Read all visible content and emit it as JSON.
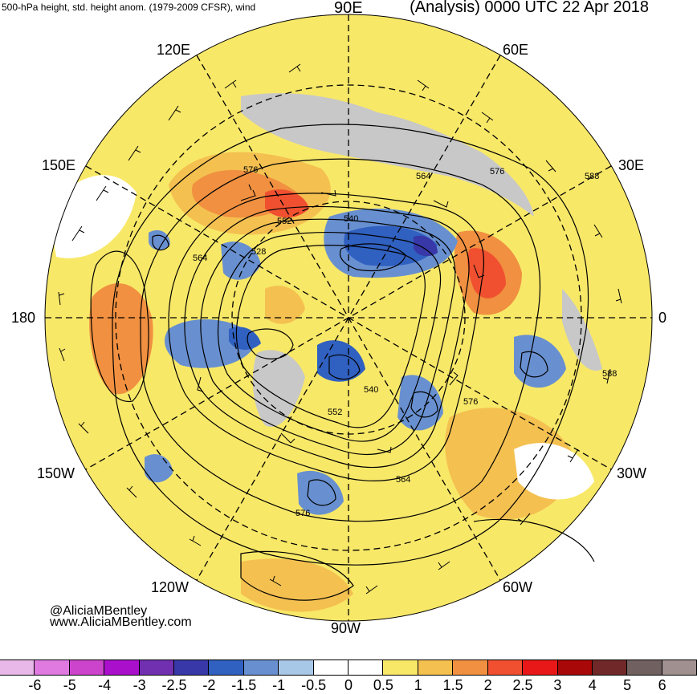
{
  "header": {
    "left": "500-hPa height, std. height anom. (1979-2009 CFSR), wind",
    "right": "(Analysis) 0000 UTC 22 Apr 2018"
  },
  "longitudes": {
    "e90": "90E",
    "e120": "120E",
    "e60": "60E",
    "e150": "150E",
    "e30": "30E",
    "d180": "180",
    "d0": "0",
    "w150": "150W",
    "w30": "30W",
    "w120": "120W",
    "w60": "60W",
    "w90": "90W"
  },
  "contours": {
    "c576a": "576",
    "c576b": "576",
    "c564a": "564",
    "c588a": "588",
    "c552a": "552",
    "c540a": "540",
    "c564b": "564",
    "c528": "528",
    "c540b": "540",
    "c552b": "552",
    "c576c": "576",
    "c588b": "588",
    "c564c": "564",
    "c576d": "576"
  },
  "credits": {
    "handle": "@AliciaMBentley",
    "site": "www.AliciaMBentley.com"
  },
  "colorbar": {
    "colors": [
      "#e8b8e8",
      "#e07ae0",
      "#cc44cc",
      "#aa10cc",
      "#7030b0",
      "#3838a8",
      "#3060c0",
      "#6890d0",
      "#a8c8e8",
      "#ffffff",
      "#ffffff",
      "#f8e868",
      "#f4c050",
      "#f09040",
      "#f05030",
      "#e81818",
      "#a80808",
      "#702828",
      "#706060",
      "#a09090"
    ],
    "ticks": [
      "-6",
      "-5",
      "-4",
      "-3",
      "-2.5",
      "-2",
      "-1.5",
      "-1",
      "-0.5",
      "0",
      "0.5",
      "1",
      "1.5",
      "2",
      "2.5",
      "3",
      "4",
      "5",
      "6"
    ]
  }
}
